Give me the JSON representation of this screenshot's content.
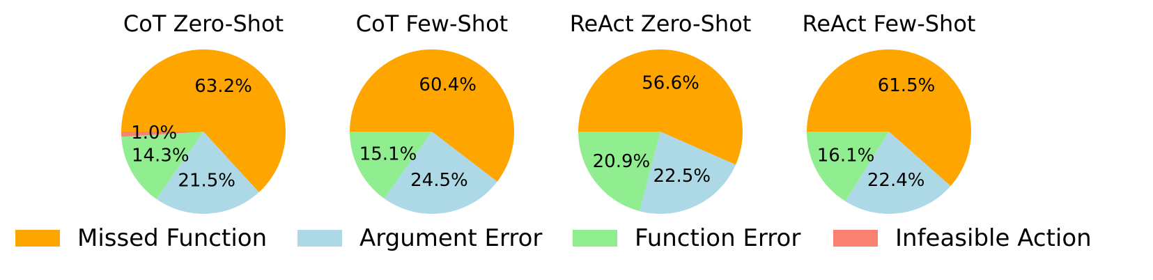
{
  "chart_data": {
    "type": "pie",
    "legend": {
      "placement": "bottom",
      "entries": [
        {
          "label": "Missed Function",
          "color": "#FFA500"
        },
        {
          "label": "Argument Error",
          "color": "#ADD8E6"
        },
        {
          "label": "Function Error",
          "color": "#90EE90"
        },
        {
          "label": "Infeasible Action",
          "color": "#FA8072"
        }
      ]
    },
    "pies": [
      {
        "title": "CoT Zero-Shot",
        "slices": [
          {
            "category": "Missed Function",
            "value": 63.2,
            "label": "63.2%"
          },
          {
            "category": "Argument Error",
            "value": 21.5,
            "label": "21.5%"
          },
          {
            "category": "Function Error",
            "value": 14.3,
            "label": "14.3%"
          },
          {
            "category": "Infeasible Action",
            "value": 1.0,
            "label": "1.0%"
          }
        ]
      },
      {
        "title": "CoT Few-Shot",
        "slices": [
          {
            "category": "Missed Function",
            "value": 60.4,
            "label": "60.4%"
          },
          {
            "category": "Argument Error",
            "value": 24.5,
            "label": "24.5%"
          },
          {
            "category": "Function Error",
            "value": 15.1,
            "label": "15.1%"
          }
        ]
      },
      {
        "title": "ReAct Zero-Shot",
        "slices": [
          {
            "category": "Missed Function",
            "value": 56.6,
            "label": "56.6%"
          },
          {
            "category": "Argument Error",
            "value": 22.5,
            "label": "22.5%"
          },
          {
            "category": "Function Error",
            "value": 20.9,
            "label": "20.9%"
          }
        ]
      },
      {
        "title": "ReAct Few-Shot",
        "slices": [
          {
            "category": "Missed Function",
            "value": 61.5,
            "label": "61.5%"
          },
          {
            "category": "Argument Error",
            "value": 22.4,
            "label": "22.4%"
          },
          {
            "category": "Function Error",
            "value": 16.1,
            "label": "16.1%"
          }
        ]
      }
    ]
  }
}
